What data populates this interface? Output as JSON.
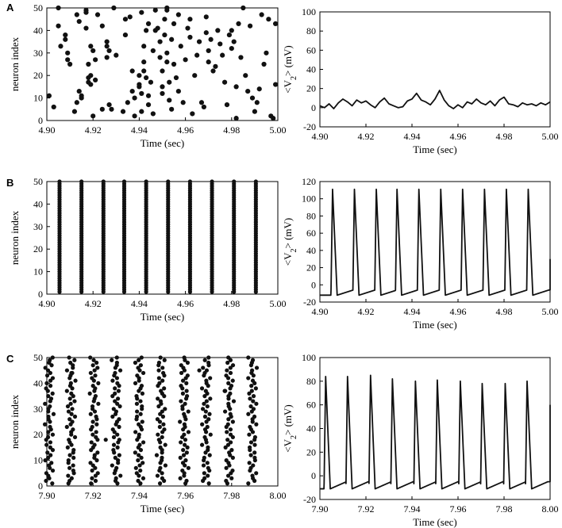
{
  "panels": [
    {
      "letter": "A"
    },
    {
      "letter": "B"
    },
    {
      "letter": "C"
    }
  ],
  "chart_data": [
    {
      "id": "A-raster",
      "type": "scatter",
      "xlabel": "Time (sec)",
      "ylabel": "neuron index",
      "xlim": [
        4.9,
        5.0
      ],
      "ylim": [
        0,
        50
      ],
      "xticks": [
        "4.90",
        "4.92",
        "4.94",
        "4.96",
        "4.98",
        "5.00"
      ],
      "yticks": [
        "0",
        "10",
        "20",
        "30",
        "40",
        "50"
      ],
      "grid": false,
      "points": [
        [
          4.901,
          11
        ],
        [
          4.903,
          6
        ],
        [
          4.905,
          50
        ],
        [
          4.905,
          42
        ],
        [
          4.906,
          33
        ],
        [
          4.908,
          38
        ],
        [
          4.908,
          36
        ],
        [
          4.909,
          30
        ],
        [
          4.909,
          27
        ],
        [
          4.91,
          25
        ],
        [
          4.912,
          4
        ],
        [
          4.913,
          8
        ],
        [
          4.913,
          47
        ],
        [
          4.914,
          44
        ],
        [
          4.914,
          13
        ],
        [
          4.915,
          11
        ],
        [
          4.915,
          10
        ],
        [
          4.917,
          49
        ],
        [
          4.917,
          48
        ],
        [
          4.917,
          41
        ],
        [
          4.918,
          19
        ],
        [
          4.918,
          17
        ],
        [
          4.918,
          25
        ],
        [
          4.919,
          33
        ],
        [
          4.919,
          20
        ],
        [
          4.919,
          16
        ],
        [
          4.92,
          31
        ],
        [
          4.92,
          2
        ],
        [
          4.921,
          18
        ],
        [
          4.921,
          27
        ],
        [
          4.922,
          47
        ],
        [
          4.924,
          42
        ],
        [
          4.924,
          5
        ],
        [
          4.926,
          35
        ],
        [
          4.926,
          33
        ],
        [
          4.926,
          28
        ],
        [
          4.927,
          31
        ],
        [
          4.927,
          7
        ],
        [
          4.928,
          5
        ],
        [
          4.929,
          50
        ],
        [
          4.93,
          29
        ],
        [
          4.933,
          4
        ],
        [
          4.934,
          45
        ],
        [
          4.934,
          38
        ],
        [
          4.935,
          8
        ],
        [
          4.936,
          46
        ],
        [
          4.937,
          22
        ],
        [
          4.937,
          13
        ],
        [
          4.938,
          10
        ],
        [
          4.938,
          2
        ],
        [
          4.94,
          16
        ],
        [
          4.94,
          20
        ],
        [
          4.94,
          15
        ],
        [
          4.941,
          12
        ],
        [
          4.941,
          4
        ],
        [
          4.941,
          48
        ],
        [
          4.942,
          33
        ],
        [
          4.942,
          26
        ],
        [
          4.942,
          22
        ],
        [
          4.943,
          40
        ],
        [
          4.943,
          19
        ],
        [
          4.944,
          11
        ],
        [
          4.944,
          7
        ],
        [
          4.944,
          43
        ],
        [
          4.945,
          17
        ],
        [
          4.946,
          3
        ],
        [
          4.946,
          31
        ],
        [
          4.947,
          49
        ],
        [
          4.947,
          40
        ],
        [
          4.948,
          41
        ],
        [
          4.949,
          35
        ],
        [
          4.949,
          28
        ],
        [
          4.95,
          15
        ],
        [
          4.95,
          12
        ],
        [
          4.95,
          22
        ],
        [
          4.951,
          45
        ],
        [
          4.951,
          38
        ],
        [
          4.952,
          50
        ],
        [
          4.952,
          49
        ],
        [
          4.952,
          30
        ],
        [
          4.952,
          26
        ],
        [
          4.953,
          17
        ],
        [
          4.953,
          9
        ],
        [
          4.954,
          5
        ],
        [
          4.954,
          36
        ],
        [
          4.955,
          25
        ],
        [
          4.955,
          43
        ],
        [
          4.956,
          19
        ],
        [
          4.957,
          13
        ],
        [
          4.957,
          47
        ],
        [
          4.958,
          33
        ],
        [
          4.959,
          8
        ],
        [
          4.96,
          27
        ],
        [
          4.961,
          41
        ],
        [
          4.962,
          45
        ],
        [
          4.962,
          37
        ],
        [
          4.963,
          3
        ],
        [
          4.964,
          20
        ],
        [
          4.965,
          29
        ],
        [
          4.966,
          35
        ],
        [
          4.967,
          8
        ],
        [
          4.968,
          6
        ],
        [
          4.969,
          46
        ],
        [
          4.969,
          39
        ],
        [
          4.97,
          26
        ],
        [
          4.97,
          31
        ],
        [
          4.971,
          36
        ],
        [
          4.972,
          22
        ],
        [
          4.973,
          24
        ],
        [
          4.974,
          40
        ],
        [
          4.975,
          34
        ],
        [
          4.976,
          29
        ],
        [
          4.977,
          17
        ],
        [
          4.978,
          7
        ],
        [
          4.979,
          38
        ],
        [
          4.98,
          32
        ],
        [
          4.98,
          40
        ],
        [
          4.981,
          35
        ],
        [
          4.982,
          15
        ],
        [
          4.982,
          1
        ],
        [
          4.983,
          43
        ],
        [
          4.984,
          28
        ],
        [
          4.985,
          50
        ],
        [
          4.986,
          20
        ],
        [
          4.987,
          13
        ],
        [
          4.988,
          42
        ],
        [
          4.989,
          10
        ],
        [
          4.99,
          4
        ],
        [
          4.991,
          8
        ],
        [
          4.992,
          14
        ],
        [
          4.993,
          47
        ],
        [
          4.994,
          25
        ],
        [
          4.995,
          30
        ],
        [
          4.996,
          45
        ],
        [
          4.997,
          2
        ],
        [
          4.998,
          1
        ],
        [
          4.999,
          43
        ],
        [
          4.999,
          16
        ]
      ]
    },
    {
      "id": "A-trace",
      "type": "line",
      "xlabel": "Time (sec)",
      "ylabel_main": "<V",
      "ylabel_sub": "2",
      "ylabel_tail": ">  (mV)",
      "xlim": [
        4.9,
        5.0
      ],
      "ylim": [
        -20,
        100
      ],
      "xticks": [
        "4.90",
        "4.92",
        "4.94",
        "4.96",
        "4.98",
        "5.00"
      ],
      "yticks": [
        "-20",
        "0",
        "20",
        "40",
        "60",
        "80",
        "100"
      ],
      "grid": false,
      "x": [
        4.9,
        4.902,
        4.904,
        4.906,
        4.908,
        4.91,
        4.912,
        4.914,
        4.916,
        4.918,
        4.92,
        4.922,
        4.924,
        4.926,
        4.928,
        4.93,
        4.932,
        4.934,
        4.936,
        4.938,
        4.94,
        4.942,
        4.944,
        4.946,
        4.948,
        4.95,
        4.952,
        4.954,
        4.956,
        4.958,
        4.96,
        4.962,
        4.964,
        4.966,
        4.968,
        4.97,
        4.972,
        4.974,
        4.976,
        4.978,
        4.98,
        4.982,
        4.984,
        4.986,
        4.988,
        4.99,
        4.992,
        4.994,
        4.996,
        4.998,
        5.0
      ],
      "y": [
        2,
        0,
        4,
        -1,
        5,
        9,
        6,
        2,
        8,
        5,
        7,
        3,
        0,
        6,
        10,
        4,
        2,
        0,
        1,
        7,
        9,
        15,
        8,
        6,
        3,
        9,
        18,
        8,
        2,
        -1,
        3,
        0,
        6,
        4,
        9,
        5,
        3,
        7,
        2,
        8,
        11,
        4,
        3,
        1,
        5,
        3,
        4,
        2,
        5,
        3,
        6
      ]
    },
    {
      "id": "B-raster",
      "type": "scatter",
      "xlabel": "Time (sec)",
      "ylabel": "neuron index",
      "xlim": [
        4.9,
        5.0
      ],
      "ylim": [
        0,
        50
      ],
      "xticks": [
        "4.90",
        "4.92",
        "4.94",
        "4.96",
        "4.98",
        "5.00"
      ],
      "yticks": [
        "0",
        "10",
        "20",
        "30",
        "40",
        "50"
      ],
      "grid": false,
      "columns": [
        4.9055,
        4.915,
        4.9245,
        4.9335,
        4.943,
        4.9525,
        4.962,
        4.9715,
        4.981,
        4.9905
      ],
      "neurons_per_column": 50
    },
    {
      "id": "B-trace",
      "type": "line",
      "xlabel": "Time (sec)",
      "ylabel_main": "<V",
      "ylabel_sub": "2",
      "ylabel_tail": ">  (mV)",
      "xlim": [
        4.9,
        5.0
      ],
      "ylim": [
        -20,
        120
      ],
      "xticks": [
        "4.90",
        "4.92",
        "4.94",
        "4.96",
        "4.98",
        "5.00"
      ],
      "yticks": [
        "-20",
        "0",
        "20",
        "40",
        "60",
        "80",
        "100",
        "120"
      ],
      "grid": false,
      "spike_times": [
        4.9055,
        4.915,
        4.9245,
        4.9335,
        4.943,
        4.9525,
        4.962,
        4.9715,
        4.981,
        4.9905
      ],
      "spike_peak": 111,
      "trough": -12,
      "end_value": 30
    },
    {
      "id": "C-raster",
      "type": "scatter",
      "xlabel": "Time (sec)",
      "ylabel": "neuron index",
      "xlim": [
        7.9,
        8.0
      ],
      "ylim": [
        0,
        50
      ],
      "xticks": [
        "7.90",
        "7.92",
        "7.94",
        "7.96",
        "7.98",
        "8.00"
      ],
      "yticks": [
        "0",
        "10",
        "20",
        "30",
        "40",
        "50"
      ],
      "grid": false,
      "columns": [
        7.901,
        7.9105,
        7.9205,
        7.93,
        7.94,
        7.9495,
        7.9595,
        7.969,
        7.979,
        7.989
      ],
      "neurons_per_column": 50,
      "jitter": 0.0012,
      "extra_points": [
        [
          7.9255,
          18
        ],
        [
          7.966,
          45
        ],
        [
          7.977,
          37
        ],
        [
          7.911,
          44
        ]
      ]
    },
    {
      "id": "C-trace",
      "type": "line",
      "xlabel": "Time (sec)",
      "ylabel_main": "<V",
      "ylabel_sub": "2",
      "ylabel_tail": ">  (mV)",
      "xlim": [
        7.9,
        8.0
      ],
      "ylim": [
        -20,
        100
      ],
      "xticks": [
        "7.90",
        "7.92",
        "7.94",
        "7.96",
        "7.98",
        "8.00"
      ],
      "yticks": [
        "-20",
        "0",
        "20",
        "40",
        "60",
        "80",
        "100"
      ],
      "grid": false,
      "spike_times": [
        7.9025,
        7.912,
        7.922,
        7.9315,
        7.9415,
        7.951,
        7.961,
        7.9705,
        7.9805,
        7.99
      ],
      "spike_peaks": [
        84,
        84,
        85,
        82,
        80,
        81,
        80,
        78,
        78,
        80
      ],
      "trough": -11,
      "end_value": 60
    }
  ]
}
